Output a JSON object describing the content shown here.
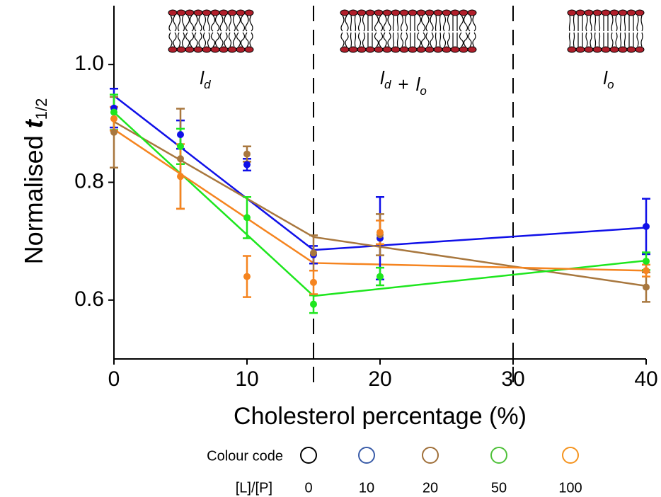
{
  "chart_data": {
    "type": "scatter",
    "x_label": "Cholesterol percentage (%)",
    "y_label": {
      "text": "Normalised ",
      "symbol": "t",
      "subscript": "1/2"
    },
    "xlim": [
      0,
      40
    ],
    "ylim": [
      0.5,
      1.1
    ],
    "xticks": [
      0,
      10,
      20,
      30,
      40
    ],
    "yticks": [
      {
        "value": 1,
        "label": "1.0"
      },
      0.8,
      0.6
    ],
    "phase_boundaries": [
      15,
      30
    ],
    "phases": [
      {
        "label": [
          {
            "t": "l",
            "sub": "d"
          }
        ]
      },
      {
        "label": [
          {
            "t": "l",
            "sub": "d"
          },
          {
            "t": "+"
          },
          {
            "t": "l",
            "sub": "o"
          }
        ]
      },
      {
        "label": [
          {
            "t": "l",
            "sub": "o"
          }
        ]
      }
    ],
    "x": [
      0,
      5,
      10,
      15,
      20,
      40
    ],
    "series": [
      {
        "color": "#1010e8",
        "values": [
          0.926,
          0.881,
          0.83,
          0.677,
          0.705,
          0.725
        ],
        "errors": [
          0.033,
          0.024,
          0.01,
          0.015,
          0.07,
          0.047
        ],
        "fit": {
          "x": [
            0,
            15,
            40
          ],
          "y": [
            0.947,
            0.685,
            0.723
          ]
        }
      },
      {
        "color": "#a8773e",
        "values": [
          0.885,
          0.84,
          0.848,
          0.68,
          0.711,
          0.622
        ],
        "errors": [
          0.06,
          0.085,
          0.013,
          0.03,
          0.035,
          0.025
        ],
        "fit": {
          "x": [
            0,
            15,
            40
          ],
          "y": [
            0.903,
            0.707,
            0.624
          ]
        }
      },
      {
        "color": "#1ee61e",
        "values": [
          0.919,
          0.861,
          0.74,
          0.593,
          0.64,
          0.666
        ],
        "errors": [
          0.03,
          0.03,
          0.035,
          0.015,
          0.015,
          0.015
        ],
        "fit": {
          "x": [
            0,
            15,
            40
          ],
          "y": [
            0.919,
            0.607,
            0.667
          ]
        }
      },
      {
        "color": "#f5841f",
        "values": [
          0.908,
          0.81,
          0.64,
          0.63,
          0.715,
          0.65
        ],
        "errors": [
          0.02,
          0.055,
          0.035,
          0.02,
          0.02,
          0.01
        ],
        "fit": {
          "x": [
            0,
            15,
            40
          ],
          "y": [
            0.89,
            0.663,
            0.65
          ]
        }
      }
    ],
    "legend": {
      "title": "Colour code",
      "key_title": "[L]/[P]",
      "entries": [
        {
          "label": "0",
          "color": "#000000"
        },
        {
          "label": "10",
          "color": "#3a5ca8"
        },
        {
          "label": "20",
          "color": "#a0703a"
        },
        {
          "label": "50",
          "color": "#4fc13a"
        },
        {
          "label": "100",
          "color": "#f5941f"
        }
      ]
    }
  }
}
